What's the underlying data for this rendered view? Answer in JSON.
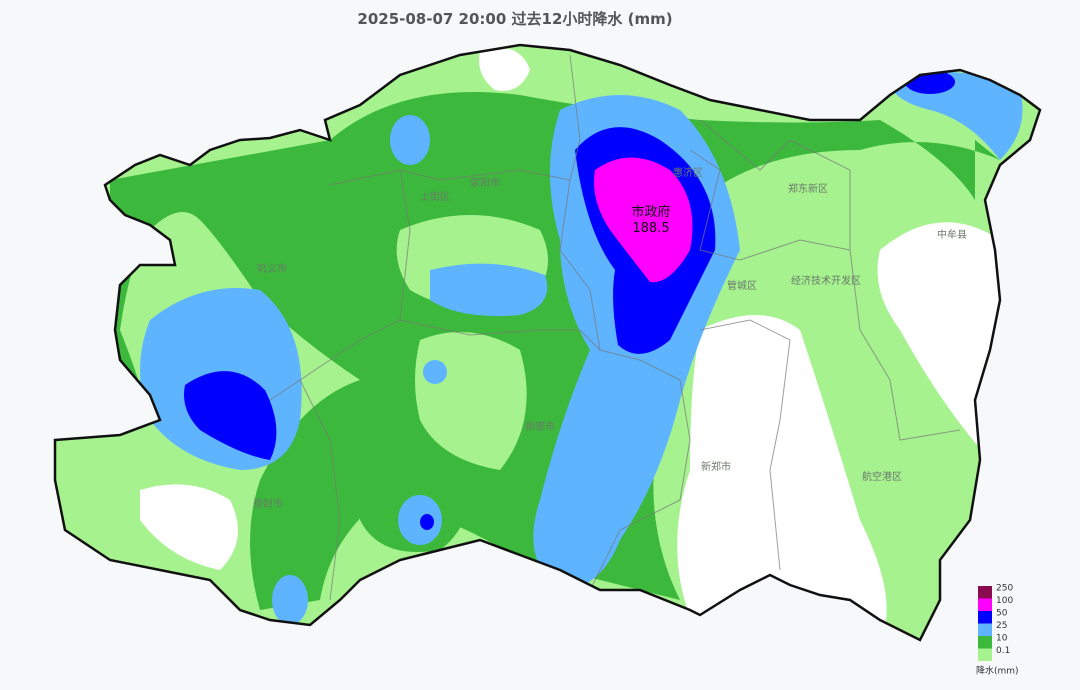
{
  "title": "2025-08-07 20:00 过去12小时降水 (mm)",
  "max_station": {
    "name": "市政府",
    "value": 188.5
  },
  "districts": [
    "郑东新区",
    "中牟县",
    "经济技术开发区",
    "航空港区",
    "新郑市",
    "新密市",
    "登封市",
    "巩义市",
    "上街区",
    "荥阳市",
    "惠济区",
    "管城区"
  ],
  "legend": {
    "title": "降水(mm)",
    "levels": [
      {
        "value": 250,
        "color": "#8b0a50"
      },
      {
        "value": 100,
        "color": "#ff00ff"
      },
      {
        "value": 50,
        "color": "#0000ff"
      },
      {
        "value": 25,
        "color": "#5eb4ff"
      },
      {
        "value": 10,
        "color": "#3cb93c"
      },
      {
        "value": 0.1,
        "color": "#a6f28f"
      }
    ]
  }
}
